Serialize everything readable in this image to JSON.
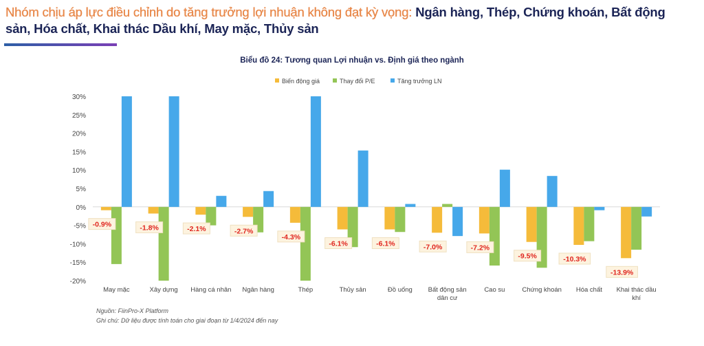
{
  "headline": {
    "lead": "Nhóm chịu áp lực điều chỉnh do tăng trưởng lợi nhuận không đạt kỳ vọng:",
    "rest": "Ngân hàng, Thép, Chứng khoán, Bất động sản, Hóa chất, Khai thác Dầu khí, May mặc, Thủy sản"
  },
  "colors": {
    "orange": "#f5bb3a",
    "green": "#93c556",
    "blue": "#46a8ea",
    "label_red": "#e0261f",
    "label_bg": "#fdf3df"
  },
  "chart_data": {
    "type": "bar",
    "title": "Biểu đồ 24: Tương quan Lợi nhuận vs. Định giá theo ngành",
    "legend_position": "top",
    "ylim": [
      -20,
      30
    ],
    "yticks": [
      "30%",
      "25%",
      "20%",
      "15%",
      "10%",
      "5%",
      "0%",
      "-5%",
      "-10%",
      "-15%",
      "-20%"
    ],
    "ytick_values": [
      30,
      25,
      20,
      15,
      10,
      5,
      0,
      -5,
      -10,
      -15,
      -20
    ],
    "categories": [
      "May mặc",
      "Xây dựng",
      "Hàng cá nhân",
      "Ngân hàng",
      "Thép",
      "Thủy sản",
      "Đồ uống",
      "Bất động sản dân cư",
      "Cao su",
      "Chứng khoán",
      "Hóa chất",
      "Khai thác dầu khí"
    ],
    "series": [
      {
        "name": "Biến động giá",
        "color": "#f5bb3a",
        "values": [
          -0.9,
          -1.8,
          -2.1,
          -2.7,
          -4.3,
          -6.1,
          -6.1,
          -7.0,
          -7.2,
          -9.5,
          -10.3,
          -13.9
        ]
      },
      {
        "name": "Thay đổi P/E",
        "color": "#93c556",
        "values": [
          -15.5,
          -20,
          -5.0,
          -6.9,
          -20,
          -10.9,
          -6.8,
          0.8,
          -15.9,
          -16.5,
          -9.3,
          -11.6
        ]
      },
      {
        "name": "Tăng trưởng LN",
        "color": "#46a8ea",
        "values": [
          30,
          30,
          3.0,
          4.3,
          30,
          15.3,
          0.8,
          -7.9,
          10.1,
          8.4,
          -0.9,
          -2.6
        ]
      }
    ],
    "data_labels": [
      "-0.9%",
      "-1.8%",
      "-2.1%",
      "-2.7%",
      "-4.3%",
      "-6.1%",
      "-6.1%",
      "-7.0%",
      "-7.2%",
      "-9.5%",
      "-10.3%",
      "-13.9%"
    ]
  },
  "footer": {
    "source": "Nguồn: FiinPro-X Platform",
    "note": "Ghi chú: Dữ liệu được tính toán cho giai đoạn từ 1/4/2024 đến nay"
  }
}
